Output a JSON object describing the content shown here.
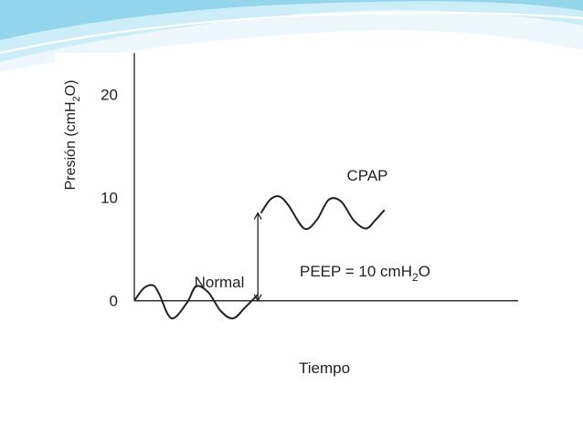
{
  "colors": {
    "header_wave_light": "#e8f6fb",
    "header_wave_mid": "#c8ebf6",
    "header_wave_dark": "#8fd3ea",
    "axis": "#222222",
    "curve": "#222222"
  },
  "chart_data": {
    "type": "line",
    "title": "",
    "xlabel": "Tiempo",
    "ylabel": {
      "base": "Presión (cmH",
      "subscript": "2",
      "suffix": "O)"
    },
    "ylim": [
      -2.5,
      24
    ],
    "yticks": [
      0,
      10,
      20
    ],
    "ytick_labels": [
      "0",
      "10",
      "20"
    ],
    "xlim": [
      0,
      1
    ],
    "grid": false,
    "series": [
      {
        "name": "Normal",
        "x": [
          0.0,
          0.03,
          0.06,
          0.08,
          0.12,
          0.17,
          0.2,
          0.24,
          0.28,
          0.32,
          0.36,
          0.4
        ],
        "y": [
          0.0,
          1.2,
          1.5,
          0.7,
          -1.7,
          -0.2,
          1.4,
          0.8,
          -1.0,
          -1.7,
          -0.6,
          0.6
        ]
      },
      {
        "name": "CPAP",
        "x": [
          0.41,
          0.44,
          0.47,
          0.5,
          0.55,
          0.59,
          0.63,
          0.67,
          0.71,
          0.75,
          0.78,
          0.81
        ],
        "y": [
          8.5,
          9.8,
          10.1,
          9.2,
          7.0,
          7.8,
          9.8,
          9.6,
          7.8,
          7.0,
          7.8,
          8.8
        ]
      }
    ],
    "annotation": {
      "text_base": "PEEP = 10 cmH",
      "text_subscript": "2",
      "text_suffix": "O",
      "arrow_x": 0.4,
      "arrow_from_y": 0,
      "arrow_to_y": 8.5
    }
  }
}
